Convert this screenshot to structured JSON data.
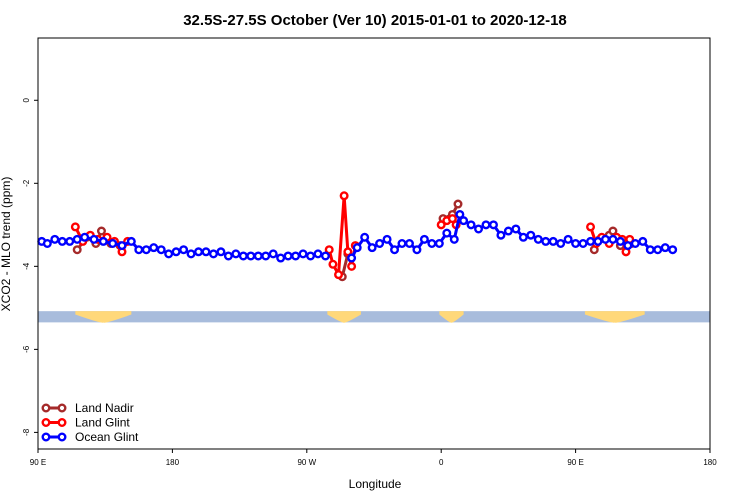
{
  "chart_data": {
    "type": "line",
    "title": "32.5S-27.5S October (Ver 10)   2015-01-01 to 2020-12-18",
    "xlabel": "Longitude",
    "ylabel": "XCO2 - MLO trend (ppm)",
    "xlim": [
      90,
      450
    ],
    "ylim": [
      -8.4,
      1.5
    ],
    "x_ticks": [
      {
        "value": 90,
        "label": "90 E"
      },
      {
        "value": 162,
        "label": "180"
      },
      {
        "value": 234,
        "label": "90 W"
      },
      {
        "value": 306,
        "label": "0"
      },
      {
        "value": 378,
        "label": "90 E"
      },
      {
        "value": 450,
        "label": "180"
      }
    ],
    "y_ticks": [
      {
        "value": 0,
        "label": "0"
      },
      {
        "value": -2,
        "label": "-2"
      },
      {
        "value": -4,
        "label": "-4"
      },
      {
        "value": -6,
        "label": "-6"
      },
      {
        "value": -8,
        "label": "-8"
      }
    ],
    "band": {
      "y_range": [
        -5.35,
        -5.08
      ],
      "ocean_color": "#a8bcdc",
      "land_color": "#ffd87a",
      "land_segments": [
        [
          110,
          140
        ],
        [
          245,
          263
        ],
        [
          305,
          318
        ],
        [
          383,
          415
        ]
      ]
    },
    "legend": {
      "position": "bottom-left"
    },
    "series": [
      {
        "name": "Land Nadir",
        "color": "#a52a2a",
        "points": [
          [
            111,
            -3.6
          ],
          [
            116,
            -3.3
          ],
          [
            121,
            -3.45
          ],
          [
            124,
            -3.15
          ],
          [
            129,
            -3.45
          ],
          [
            134,
            -3.5
          ],
          [
            253,
            -4.25
          ],
          [
            256,
            -3.7
          ],
          [
            307,
            -2.85
          ],
          [
            312,
            -2.75
          ],
          [
            315,
            -2.5
          ],
          [
            388,
            -3.6
          ],
          [
            391,
            -3.35
          ],
          [
            396,
            -3.25
          ],
          [
            398,
            -3.15
          ],
          [
            402,
            -3.5
          ],
          [
            408,
            -3.45
          ]
        ]
      },
      {
        "name": "Land Glint",
        "color": "#ff0000",
        "points": [
          [
            110,
            -3.05
          ],
          [
            114,
            -3.4
          ],
          [
            118,
            -3.25
          ],
          [
            122,
            -3.35
          ],
          [
            127,
            -3.3
          ],
          [
            131,
            -3.4
          ],
          [
            135,
            -3.65
          ],
          [
            138,
            -3.4
          ],
          [
            246,
            -3.6
          ],
          [
            248,
            -3.95
          ],
          [
            251,
            -4.2
          ],
          [
            254,
            -2.3
          ],
          [
            256,
            -3.65
          ],
          [
            258,
            -4.0
          ],
          [
            260,
            -3.5
          ],
          [
            306,
            -3.0
          ],
          [
            309,
            -2.9
          ],
          [
            312,
            -2.85
          ],
          [
            314,
            -3.0
          ],
          [
            386,
            -3.05
          ],
          [
            389,
            -3.45
          ],
          [
            392,
            -3.3
          ],
          [
            396,
            -3.45
          ],
          [
            400,
            -3.3
          ],
          [
            403,
            -3.35
          ],
          [
            405,
            -3.65
          ],
          [
            407,
            -3.35
          ]
        ]
      },
      {
        "name": "Ocean Glint",
        "color": "#0000ff",
        "points": [
          [
            92,
            -3.4
          ],
          [
            95,
            -3.45
          ],
          [
            99,
            -3.35
          ],
          [
            103,
            -3.4
          ],
          [
            107,
            -3.4
          ],
          [
            111,
            -3.35
          ],
          [
            115,
            -3.3
          ],
          [
            120,
            -3.35
          ],
          [
            125,
            -3.4
          ],
          [
            130,
            -3.45
          ],
          [
            135,
            -3.5
          ],
          [
            140,
            -3.4
          ],
          [
            144,
            -3.6
          ],
          [
            148,
            -3.6
          ],
          [
            152,
            -3.55
          ],
          [
            156,
            -3.6
          ],
          [
            160,
            -3.7
          ],
          [
            164,
            -3.65
          ],
          [
            168,
            -3.6
          ],
          [
            172,
            -3.7
          ],
          [
            176,
            -3.65
          ],
          [
            180,
            -3.65
          ],
          [
            184,
            -3.7
          ],
          [
            188,
            -3.65
          ],
          [
            192,
            -3.75
          ],
          [
            196,
            -3.7
          ],
          [
            200,
            -3.75
          ],
          [
            204,
            -3.75
          ],
          [
            208,
            -3.75
          ],
          [
            212,
            -3.75
          ],
          [
            216,
            -3.7
          ],
          [
            220,
            -3.8
          ],
          [
            224,
            -3.75
          ],
          [
            228,
            -3.75
          ],
          [
            232,
            -3.7
          ],
          [
            236,
            -3.75
          ],
          [
            240,
            -3.7
          ],
          [
            244,
            -3.75
          ],
          [
            258,
            -3.8
          ],
          [
            261,
            -3.55
          ],
          [
            265,
            -3.3
          ],
          [
            269,
            -3.55
          ],
          [
            273,
            -3.45
          ],
          [
            277,
            -3.35
          ],
          [
            281,
            -3.6
          ],
          [
            285,
            -3.45
          ],
          [
            289,
            -3.45
          ],
          [
            293,
            -3.6
          ],
          [
            297,
            -3.35
          ],
          [
            301,
            -3.45
          ],
          [
            305,
            -3.45
          ],
          [
            309,
            -3.2
          ],
          [
            313,
            -3.35
          ],
          [
            316,
            -2.75
          ],
          [
            318,
            -2.9
          ],
          [
            322,
            -3.0
          ],
          [
            326,
            -3.1
          ],
          [
            330,
            -3.0
          ],
          [
            334,
            -3.0
          ],
          [
            338,
            -3.25
          ],
          [
            342,
            -3.15
          ],
          [
            346,
            -3.1
          ],
          [
            350,
            -3.3
          ],
          [
            354,
            -3.25
          ],
          [
            358,
            -3.35
          ],
          [
            362,
            -3.4
          ],
          [
            366,
            -3.4
          ],
          [
            370,
            -3.45
          ],
          [
            374,
            -3.35
          ],
          [
            378,
            -3.45
          ],
          [
            382,
            -3.45
          ],
          [
            386,
            -3.4
          ],
          [
            390,
            -3.4
          ],
          [
            394,
            -3.35
          ],
          [
            398,
            -3.35
          ],
          [
            402,
            -3.4
          ],
          [
            406,
            -3.5
          ],
          [
            410,
            -3.45
          ],
          [
            414,
            -3.4
          ],
          [
            418,
            -3.6
          ],
          [
            422,
            -3.6
          ],
          [
            426,
            -3.55
          ],
          [
            430,
            -3.6
          ]
        ]
      }
    ]
  }
}
